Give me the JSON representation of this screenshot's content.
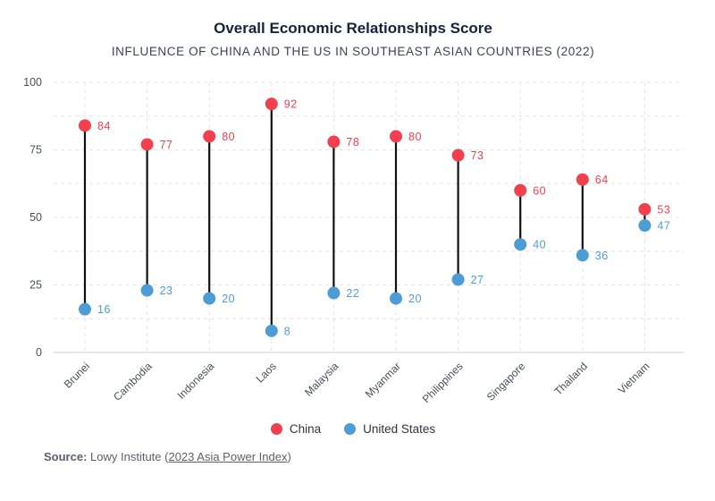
{
  "title": "Overall Economic Relationships Score",
  "subtitle": "INFLUENCE OF CHINA AND THE US IN SOUTHEAST ASIAN COUNTRIES (2022)",
  "source": {
    "label": "Source:",
    "text": "Lowy Institute (",
    "link": "2023 Asia Power Index",
    "close": ")"
  },
  "legend": [
    {
      "name": "China",
      "color": "#f2404f"
    },
    {
      "name": "United States",
      "color": "#4d9cd6"
    }
  ],
  "chart_data": {
    "type": "dumbbell",
    "title": "Overall Economic Relationships Score",
    "subtitle": "INFLUENCE OF CHINA AND THE US IN SOUTHEAST ASIAN COUNTRIES (2022)",
    "categories": [
      "Brunei",
      "Cambodia",
      "Indonesia",
      "Laos",
      "Malaysia",
      "Myanmar",
      "Philippines",
      "Singapore",
      "Thailand",
      "Vietnam"
    ],
    "series": [
      {
        "name": "China",
        "color": "#f2404f",
        "values": [
          84,
          77,
          80,
          92,
          78,
          80,
          73,
          60,
          64,
          53
        ]
      },
      {
        "name": "United States",
        "color": "#4d9cd6",
        "values": [
          16,
          23,
          20,
          8,
          22,
          20,
          27,
          40,
          36,
          47
        ]
      }
    ],
    "ylim": [
      0,
      100
    ],
    "yticks": [
      0,
      25,
      50,
      75,
      100
    ],
    "grid": true,
    "legend_position": "bottom"
  }
}
